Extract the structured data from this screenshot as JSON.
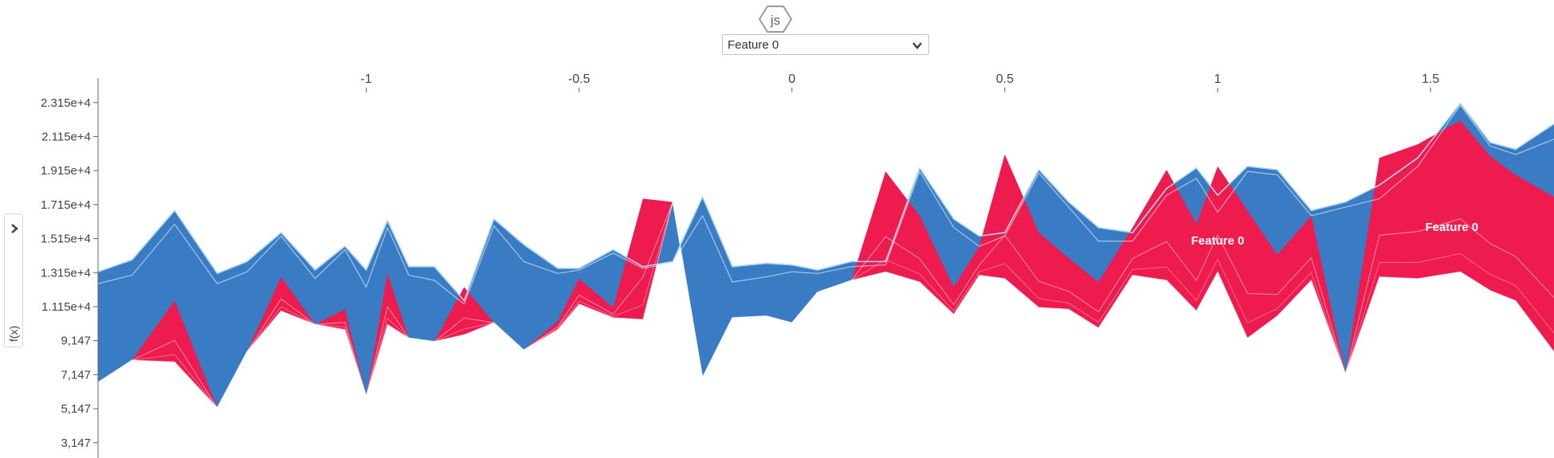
{
  "header": {
    "badge_text": "js",
    "badge_icon": "hexagon-js-icon"
  },
  "selector": {
    "value": "Feature 0",
    "icon": "chevron-down-icon"
  },
  "side_panel": {
    "ylabel": "f(x)",
    "toggle_icon": "chevron-right-icon"
  },
  "chart_data": {
    "type": "area",
    "title": "",
    "xlabel": "Feature 0",
    "ylabel": "f(x)",
    "xlim": [
      -1.63,
      1.79
    ],
    "ylim": [
      2480,
      24500
    ],
    "x_ticks": [
      -1,
      -0.5,
      0,
      0.5,
      1,
      1.5
    ],
    "x_tick_labels": [
      "-1",
      "-0.5",
      "0",
      "0.5",
      "1",
      "1.5"
    ],
    "y_ticks": [
      23150,
      21150,
      19150,
      17150,
      15150,
      13150,
      11150,
      9147,
      7147,
      5147,
      3147
    ],
    "y_tick_labels": [
      "2.315e+4",
      "2.115e+4",
      "1.915e+4",
      "1.715e+4",
      "1.515e+4",
      "1.315e+4",
      "1.115e+4",
      "9,147",
      "7,147",
      "5,147",
      "3,147"
    ],
    "colors": {
      "positive": "#ff0051",
      "negative": "#008bfb",
      "positive_rendered": "#ee1b4e",
      "negative_rendered": "#3a7cc4",
      "edge": "#a9d5f5"
    },
    "annotations": [
      {
        "text": "Feature 0",
        "x": 1.0,
        "y": 14800
      },
      {
        "text": "Feature 0",
        "x": 1.55,
        "y": 15600
      }
    ],
    "x": [
      -1.63,
      -1.55,
      -1.45,
      -1.35,
      -1.28,
      -1.2,
      -1.12,
      -1.05,
      -1.0,
      -0.95,
      -0.9,
      -0.84,
      -0.77,
      -0.7,
      -0.63,
      -0.55,
      -0.5,
      -0.42,
      -0.35,
      -0.28,
      -0.21,
      -0.14,
      -0.06,
      0.0,
      0.06,
      0.14,
      0.22,
      0.3,
      0.38,
      0.44,
      0.5,
      0.58,
      0.65,
      0.72,
      0.8,
      0.88,
      0.95,
      1.0,
      1.07,
      1.14,
      1.22,
      1.3,
      1.38,
      1.47,
      1.57,
      1.64,
      1.7,
      1.79
    ],
    "series": [
      {
        "name": "base",
        "values": [
          6700,
          8000,
          7900,
          5200,
          8500,
          10900,
          10100,
          9800,
          5900,
          10100,
          9300,
          9100,
          9500,
          10200,
          8600,
          9800,
          11300,
          10500,
          10400,
          17300,
          7000,
          10500,
          10600,
          10200,
          12000,
          12700,
          13200,
          12600,
          10700,
          13000,
          12800,
          11100,
          11000,
          9900,
          13000,
          12700,
          10900,
          13200,
          9300,
          10600,
          12700,
          7200,
          12900,
          12800,
          13200,
          12100,
          11500,
          8500
        ]
      },
      {
        "name": "top",
        "values": [
          13200,
          13900,
          16800,
          13100,
          13800,
          15500,
          13300,
          14700,
          13300,
          16200,
          13500,
          13500,
          11500,
          16300,
          14800,
          13400,
          13400,
          14500,
          13500,
          13800,
          17600,
          13500,
          13700,
          13600,
          13300,
          13800,
          13800,
          19300,
          16300,
          15300,
          15500,
          19200,
          17300,
          15800,
          15500,
          18100,
          19300,
          17700,
          19400,
          19200,
          16800,
          17300,
          18300,
          19900,
          23100,
          20800,
          20400,
          21900
        ]
      },
      {
        "name": "pos_top",
        "values": [
          6700,
          8000,
          11500,
          5200,
          8500,
          12900,
          10100,
          11000,
          5900,
          13100,
          9300,
          9100,
          12300,
          10200,
          8600,
          10300,
          12800,
          11100,
          17500,
          17300,
          7000,
          10500,
          10600,
          10200,
          12000,
          12700,
          19100,
          16500,
          12300,
          14700,
          20100,
          15500,
          14000,
          12600,
          15800,
          19200,
          16000,
          19400,
          16800,
          14200,
          16500,
          7200,
          19900,
          20700,
          22100,
          20000,
          18900,
          17600
        ]
      },
      {
        "name": "neg_bottom",
        "values": [
          12500,
          13000,
          16000,
          12500,
          13200,
          15300,
          12800,
          14500,
          12300,
          15800,
          13000,
          12700,
          11300,
          15900,
          13800,
          13100,
          13300,
          14300,
          13400,
          13700,
          16500,
          12600,
          12900,
          13200,
          13100,
          13500,
          13600,
          19100,
          15800,
          14700,
          15300,
          19000,
          17000,
          15000,
          15000,
          17700,
          18700,
          16700,
          19100,
          18900,
          16500,
          17000,
          17500,
          19400,
          23000,
          20600,
          20100,
          21000
        ]
      }
    ]
  }
}
